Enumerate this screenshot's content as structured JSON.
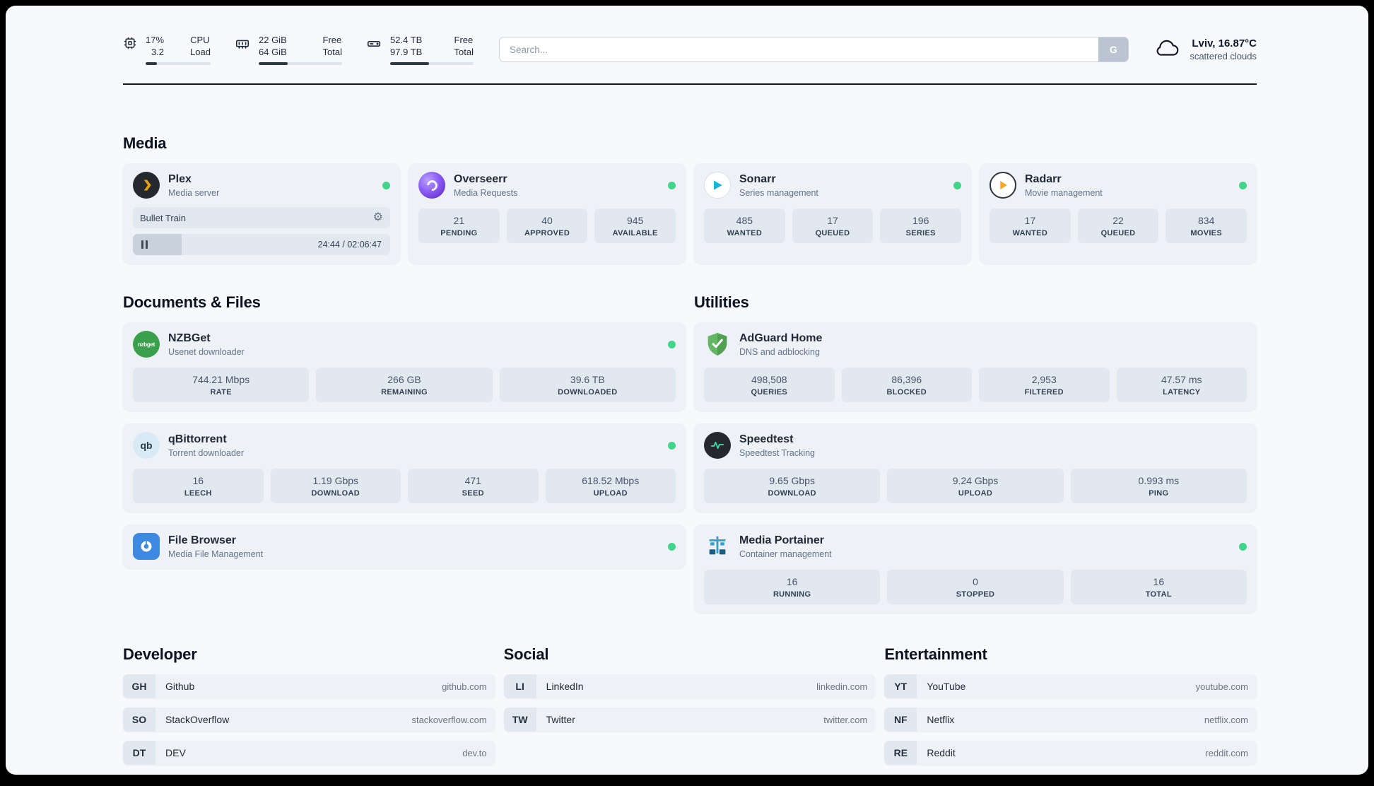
{
  "header": {
    "cpu": {
      "value_top": "17%",
      "value_bottom": "3.2",
      "label_top": "CPU",
      "label_bottom": "Load",
      "progress_pct": 17
    },
    "ram": {
      "value_top": "22 GiB",
      "value_bottom": "64 GiB",
      "label_top": "Free",
      "label_bottom": "Total",
      "progress_pct": 35
    },
    "disk": {
      "value_top": "52.4 TB",
      "value_bottom": "97.9 TB",
      "label_top": "Free",
      "label_bottom": "Total",
      "progress_pct": 47
    },
    "search": {
      "placeholder": "Search...",
      "button_label": "G"
    },
    "weather": {
      "location": "Lviv, 16.87°C",
      "condition": "scattered clouds"
    }
  },
  "icons": {
    "gear": "⚙"
  },
  "colors": {
    "accent_green": "#3fd68c",
    "card_bg": "#eef1f6",
    "block_bg": "#e2e8f0"
  },
  "sections": {
    "media": {
      "title": "Media",
      "plex": {
        "name": "Plex",
        "subtitle": "Media server",
        "now_playing": "Bullet Train",
        "time": "24:44 / 02:06:47",
        "progress_pct": 19
      },
      "overseerr": {
        "name": "Overseerr",
        "subtitle": "Media Requests",
        "stats": [
          {
            "value": "21",
            "label": "PENDING"
          },
          {
            "value": "40",
            "label": "APPROVED"
          },
          {
            "value": "945",
            "label": "AVAILABLE"
          }
        ]
      },
      "sonarr": {
        "name": "Sonarr",
        "subtitle": "Series management",
        "stats": [
          {
            "value": "485",
            "label": "WANTED"
          },
          {
            "value": "17",
            "label": "QUEUED"
          },
          {
            "value": "196",
            "label": "SERIES"
          }
        ]
      },
      "radarr": {
        "name": "Radarr",
        "subtitle": "Movie management",
        "stats": [
          {
            "value": "17",
            "label": "WANTED"
          },
          {
            "value": "22",
            "label": "QUEUED"
          },
          {
            "value": "834",
            "label": "MOVIES"
          }
        ]
      }
    },
    "documents": {
      "title": "Documents & Files",
      "nzbget": {
        "name": "NZBGet",
        "subtitle": "Usenet downloader",
        "logo_text": "nzbget",
        "stats": [
          {
            "value": "744.21 Mbps",
            "label": "RATE"
          },
          {
            "value": "266 GB",
            "label": "REMAINING"
          },
          {
            "value": "39.6 TB",
            "label": "DOWNLOADED"
          }
        ]
      },
      "qbittorrent": {
        "name": "qBittorrent",
        "subtitle": "Torrent downloader",
        "logo_text": "qb",
        "stats": [
          {
            "value": "16",
            "label": "LEECH"
          },
          {
            "value": "1.19 Gbps",
            "label": "DOWNLOAD"
          },
          {
            "value": "471",
            "label": "SEED"
          },
          {
            "value": "618.52 Mbps",
            "label": "UPLOAD"
          }
        ]
      },
      "filebrowser": {
        "name": "File Browser",
        "subtitle": "Media File Management"
      }
    },
    "utilities": {
      "title": "Utilities",
      "adguard": {
        "name": "AdGuard Home",
        "subtitle": "DNS and adblocking",
        "stats": [
          {
            "value": "498,508",
            "label": "QUERIES"
          },
          {
            "value": "86,396",
            "label": "BLOCKED"
          },
          {
            "value": "2,953",
            "label": "FILTERED"
          },
          {
            "value": "47.57 ms",
            "label": "LATENCY"
          }
        ]
      },
      "speedtest": {
        "name": "Speedtest",
        "subtitle": "Speedtest Tracking",
        "stats": [
          {
            "value": "9.65 Gbps",
            "label": "DOWNLOAD"
          },
          {
            "value": "9.24 Gbps",
            "label": "UPLOAD"
          },
          {
            "value": "0.993 ms",
            "label": "PING"
          }
        ]
      },
      "portainer": {
        "name": "Media Portainer",
        "subtitle": "Container management",
        "stats": [
          {
            "value": "16",
            "label": "RUNNING"
          },
          {
            "value": "0",
            "label": "STOPPED"
          },
          {
            "value": "16",
            "label": "TOTAL"
          }
        ]
      }
    },
    "bookmarks": {
      "developer": {
        "title": "Developer",
        "items": [
          {
            "abbr": "GH",
            "name": "Github",
            "url": "github.com"
          },
          {
            "abbr": "SO",
            "name": "StackOverflow",
            "url": "stackoverflow.com"
          },
          {
            "abbr": "DT",
            "name": "DEV",
            "url": "dev.to"
          }
        ]
      },
      "social": {
        "title": "Social",
        "items": [
          {
            "abbr": "LI",
            "name": "LinkedIn",
            "url": "linkedin.com"
          },
          {
            "abbr": "TW",
            "name": "Twitter",
            "url": "twitter.com"
          }
        ]
      },
      "entertainment": {
        "title": "Entertainment",
        "items": [
          {
            "abbr": "YT",
            "name": "YouTube",
            "url": "youtube.com"
          },
          {
            "abbr": "NF",
            "name": "Netflix",
            "url": "netflix.com"
          },
          {
            "abbr": "RE",
            "name": "Reddit",
            "url": "reddit.com"
          }
        ]
      }
    }
  }
}
